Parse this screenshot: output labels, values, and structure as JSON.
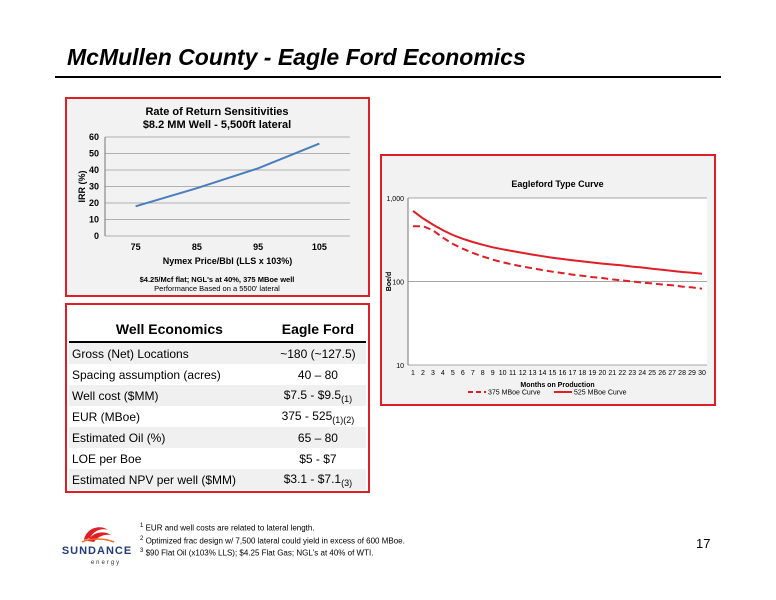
{
  "page": {
    "title": "McMullen County  -  Eagle Ford Economics",
    "page_number": "17"
  },
  "chart_data": [
    {
      "type": "line",
      "title": "Rate of Return Sensitivities",
      "subtitle": "$8.2 MM Well - 5,500ft lateral",
      "xlabel": "Nymex Price/Bbl (LLS x 103%)",
      "ylabel": "IRR (%)",
      "xlim": [
        70,
        110
      ],
      "ylim": [
        0,
        60
      ],
      "x_ticks": [
        75,
        85,
        95,
        105
      ],
      "y_ticks": [
        0,
        10,
        20,
        30,
        40,
        50,
        60
      ],
      "grid": true,
      "series": [
        {
          "values": [
            [
              75,
              18
            ],
            [
              85,
              29
            ],
            [
              95,
              41
            ],
            [
              105,
              56
            ]
          ]
        }
      ],
      "notes": [
        "$4.25/Mcf flat; NGL's at 40%, 375 MBoe well",
        "Performance Based on a 5500' lateral"
      ]
    },
    {
      "type": "line",
      "title": "Eagleford Type Curve",
      "xlabel": "Months on Production",
      "ylabel": "Boe/d",
      "y_scale": "log",
      "ylim": [
        10,
        1000
      ],
      "y_ticks": [
        "10",
        "100",
        "1,000"
      ],
      "x_ticks": [
        1,
        2,
        3,
        4,
        5,
        6,
        7,
        8,
        9,
        10,
        11,
        12,
        13,
        14,
        15,
        16,
        17,
        18,
        19,
        20,
        21,
        22,
        23,
        24,
        25,
        26,
        27,
        28,
        29,
        30
      ],
      "legend": "bottom",
      "x": [
        1,
        2,
        3,
        4,
        5,
        6,
        7,
        8,
        9,
        10,
        11,
        12,
        13,
        14,
        15,
        16,
        17,
        18,
        19,
        20,
        21,
        22,
        23,
        24,
        25,
        26,
        27,
        28,
        29,
        30
      ],
      "series": [
        {
          "name": "375 MBoe Curve",
          "style": "dashed",
          "color": "#e01e25",
          "values": [
            460,
            460,
            410,
            335,
            282,
            247,
            220,
            199,
            183,
            170,
            160,
            151,
            144,
            137,
            131,
            126,
            121,
            117,
            113,
            110,
            106,
            103,
            100,
            97,
            95,
            92,
            90,
            87,
            85,
            82
          ]
        },
        {
          "name": "525 MBoe Curve",
          "style": "solid",
          "color": "#e01e25",
          "values": [
            700,
            570,
            480,
            410,
            360,
            325,
            297,
            275,
            257,
            243,
            231,
            220,
            210,
            201,
            193,
            186,
            180,
            174,
            169,
            164,
            160,
            156,
            151,
            147,
            142,
            138,
            134,
            130,
            127,
            124
          ]
        }
      ]
    }
  ],
  "econ": {
    "header": [
      "Well Economics",
      "Eagle Ford"
    ],
    "rows": [
      {
        "label": "Gross (Net) Locations",
        "value": "~180 (~127.5)",
        "sub": ""
      },
      {
        "label": "Spacing assumption (acres)",
        "value": "40 – 80",
        "sub": ""
      },
      {
        "label": "Well cost ($MM)",
        "value": "$7.5 - $9.5",
        "sub": "(1)"
      },
      {
        "label": "EUR (MBoe)",
        "value": "375 - 525",
        "sub": "(1)(2)"
      },
      {
        "label": "Estimated Oil (%)",
        "value": "65 – 80",
        "sub": ""
      },
      {
        "label": "LOE per Boe",
        "value": "$5 - $7",
        "sub": ""
      },
      {
        "label": "Estimated NPV per well ($MM)",
        "value": "$3.1 - $7.1",
        "sub": "(3)"
      }
    ]
  },
  "footnotes": [
    {
      "mark": "1",
      "text": "EUR and well costs are related to lateral length."
    },
    {
      "mark": "2",
      "text": "Optimized frac design w/ 7,500 lateral could yield in excess of 600 MBoe."
    },
    {
      "mark": "3",
      "text": "$90 Flat Oil (x103% LLS); $4.25 Flat Gas; NGL's at 40% of WTI."
    }
  ],
  "logo": {
    "line1": "SUNDANCE",
    "line2": "energy"
  },
  "colors": {
    "accent": "#e01e25",
    "irr_line": "#4a7ebb"
  }
}
